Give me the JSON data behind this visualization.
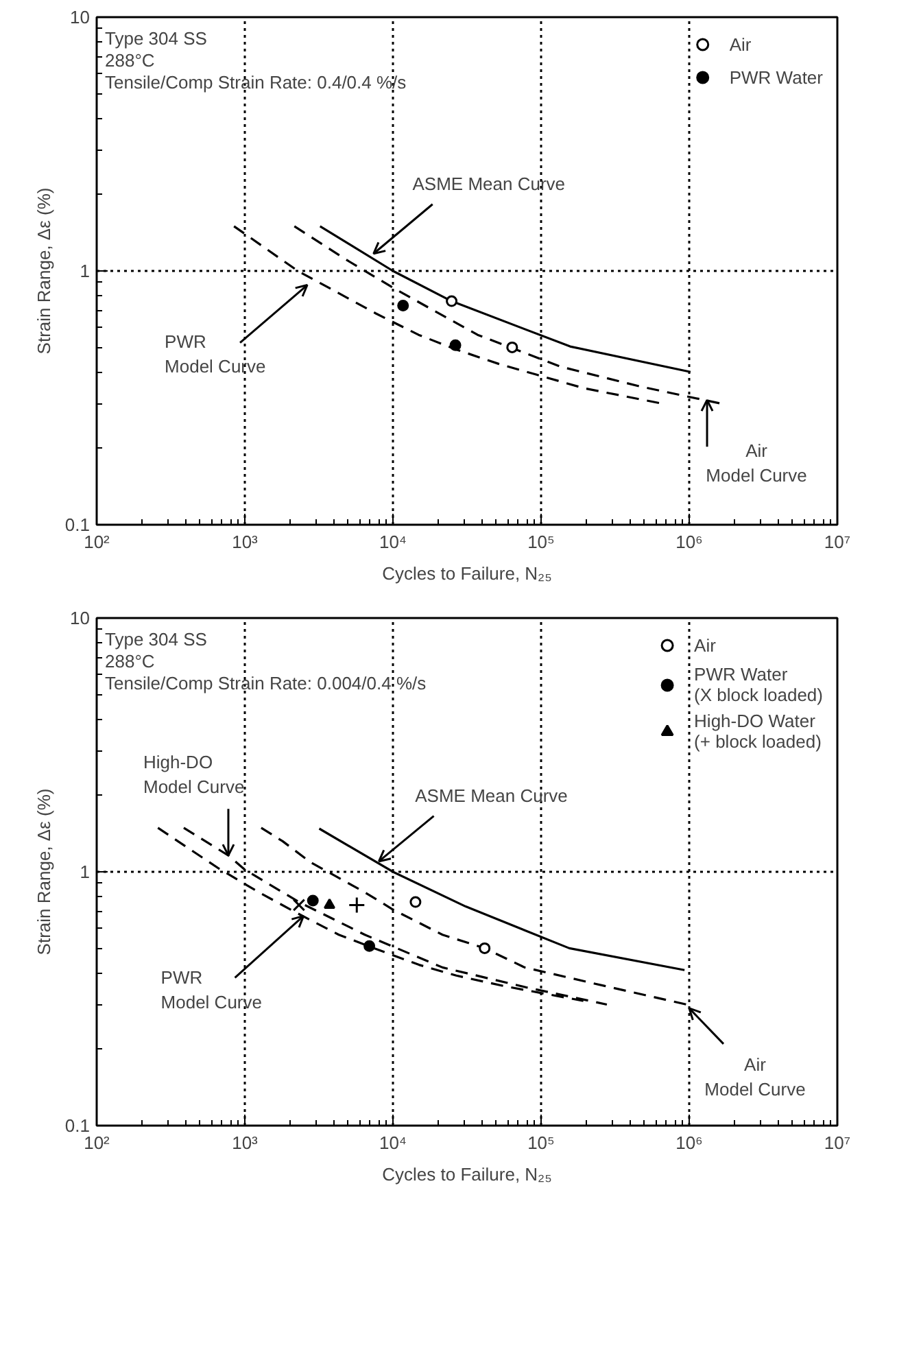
{
  "chart_data": [
    {
      "type": "line",
      "xlabel": "Cycles to Failure, N₂₅",
      "ylabel": "Strain Range, Δε (%)",
      "log": "xy",
      "xlim": [
        100,
        10000000
      ],
      "ylim": [
        0.1,
        10
      ],
      "xticks": [
        {
          "value": 100,
          "label": "10²"
        },
        {
          "value": 1000,
          "label": "10³"
        },
        {
          "value": 10000,
          "label": "10⁴"
        },
        {
          "value": 100000,
          "label": "10⁵"
        },
        {
          "value": 1000000,
          "label": "10⁶"
        },
        {
          "value": 10000000,
          "label": "10⁷"
        }
      ],
      "yticks": [
        0.1,
        1,
        10
      ],
      "grid": true,
      "legend": "top right",
      "annotations": [
        "Type 304 SS",
        "288°C",
        "Tensile/Comp Strain Rate:  0.4/0.4 %/s",
        {
          "text": "ASME Mean Curve",
          "x": 7400,
          "y": 1.17
        },
        {
          "text": "PWR\nModel Curve",
          "x": 2640,
          "y": 0.88
        },
        {
          "text": "Air\nModel Curve",
          "x": 1320000,
          "y": 0.31
        }
      ],
      "series": [
        {
          "type": "line",
          "line_style": "solid",
          "marker": "none",
          "color": "#000000",
          "x": [
            3220,
            10000,
            24900,
            157000,
            1020000
          ],
          "values": [
            1.5,
            1.0,
            0.76,
            0.504,
            0.4
          ]
        },
        {
          "type": "line",
          "line_style": "dashed",
          "marker": "none",
          "color": "#000000",
          "x": [
            2160,
            4930,
            10300,
            37300,
            135000,
            472000,
            1650000
          ],
          "values": [
            1.5,
            1.1,
            0.85,
            0.56,
            0.42,
            0.35,
            0.3
          ]
        },
        {
          "type": "line",
          "line_style": "dashed",
          "marker": "none",
          "color": "#000000",
          "x": [
            845,
            2280,
            4260,
            7670,
            14900,
            26800,
            52000,
            93500,
            195000,
            658000
          ],
          "values": [
            1.5,
            1.0,
            0.82,
            0.68,
            0.56,
            0.49,
            0.43,
            0.39,
            0.345,
            0.3
          ]
        },
        {
          "type": "scatter",
          "name": "Air",
          "marker": "circle_open",
          "color": "#000000",
          "x": [
            24900,
            63800
          ],
          "values": [
            0.76,
            0.5
          ]
        },
        {
          "type": "scatter",
          "name": "PWR Water",
          "marker": "circle",
          "color": "#000000",
          "x": [
            11700,
            26400
          ],
          "values": [
            0.73,
            0.51
          ]
        }
      ]
    },
    {
      "type": "line",
      "xlabel": "Cycles to Failure, N₂₅",
      "ylabel": "Strain Range, Δε (%)",
      "log": "xy",
      "xlim": [
        100,
        10000000
      ],
      "ylim": [
        0.1,
        10
      ],
      "xticks": [
        {
          "value": 100,
          "label": "10²"
        },
        {
          "value": 1000,
          "label": "10³"
        },
        {
          "value": 10000,
          "label": "10⁴"
        },
        {
          "value": 100000,
          "label": "10⁵"
        },
        {
          "value": 1000000,
          "label": "10⁶"
        },
        {
          "value": 10000000,
          "label": "10⁷"
        }
      ],
      "yticks": [
        0.1,
        1,
        10
      ],
      "grid": true,
      "legend": "top right",
      "annotations": [
        "Type 304 SS",
        "288°C",
        "Tensile/Comp Strain Rate:  0.004/0.4 %/s",
        {
          "text": "High-DO\nModel Curve",
          "x": 774,
          "y": 1.16
        },
        {
          "text": "ASME Mean Curve",
          "x": 8040,
          "y": 1.1
        },
        {
          "text": "PWR\nModel Curve",
          "x": 2490,
          "y": 0.67
        },
        {
          "text": "Air\nModel Curve",
          "x": 1000000,
          "y": 0.29
        }
      ],
      "series": [
        {
          "type": "line",
          "line_style": "solid",
          "marker": "none",
          "color": "#000000",
          "x": [
            3180,
            10000,
            31000,
            155000,
            930000
          ],
          "values": [
            1.48,
            1.0,
            0.73,
            0.5,
            0.41
          ]
        },
        {
          "type": "line",
          "line_style": "dashed",
          "marker": "none",
          "color": "#000000",
          "x": [
            1290,
            1800,
            2780,
            6460,
            10000,
            21600,
            41600,
            77500,
            269000,
            964000
          ],
          "values": [
            1.49,
            1.32,
            1.09,
            0.83,
            0.71,
            0.565,
            0.5,
            0.42,
            0.355,
            0.3
          ]
        },
        {
          "type": "line",
          "line_style": "dashed",
          "marker": "none",
          "color": "#000000",
          "x": [
            387,
            774,
            1000,
            2320,
            6460,
            21600,
            80300,
            278000
          ],
          "values": [
            1.49,
            1.16,
            1.02,
            0.76,
            0.565,
            0.42,
            0.35,
            0.3
          ]
        },
        {
          "type": "line",
          "line_style": "dashed",
          "marker": "none",
          "color": "#000000",
          "x": [
            259,
            668,
            1245,
            2230,
            4310,
            7470,
            15000,
            26800,
            55700,
            193000
          ],
          "values": [
            1.49,
            1.03,
            0.83,
            0.69,
            0.565,
            0.5,
            0.43,
            0.39,
            0.355,
            0.31
          ]
        },
        {
          "type": "scatter",
          "name": "Air",
          "marker": "circle_open",
          "color": "#000000",
          "x": [
            14200,
            41600
          ],
          "values": [
            0.76,
            0.5
          ]
        },
        {
          "type": "scatter",
          "name": "PWR Water\n(X block loaded)",
          "marker": "circle",
          "color": "#000000",
          "x": [
            2880,
            6930
          ],
          "values": [
            0.77,
            0.51
          ]
        },
        {
          "type": "scatter",
          "name": "High-DO Water\n(+ block loaded)",
          "marker": "triangle",
          "color": "#000000",
          "x": [
            3730
          ],
          "values": [
            0.74
          ]
        },
        {
          "type": "scatter",
          "marker": "x",
          "color": "#000000",
          "x": [
            2320
          ],
          "values": [
            0.74
          ]
        },
        {
          "type": "scatter",
          "marker": "cross",
          "color": "#000000",
          "x": [
            5700
          ],
          "values": [
            0.74
          ]
        }
      ]
    }
  ]
}
